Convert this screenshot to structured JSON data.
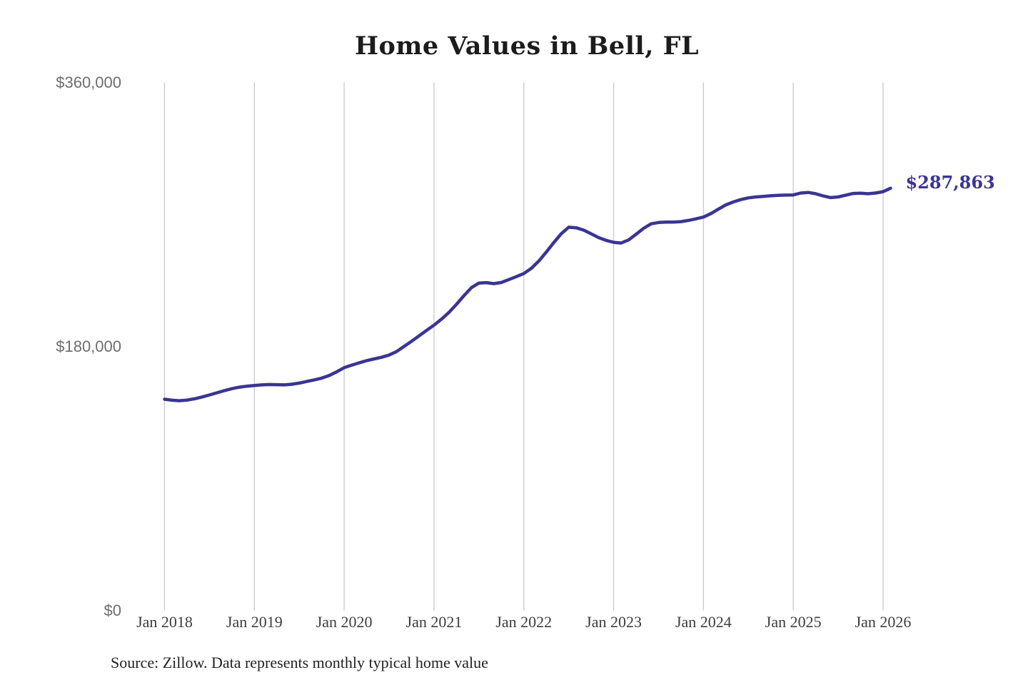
{
  "title": "Home Values in Bell, FL",
  "annotation": {
    "label": "$287,863"
  },
  "source": "Source: Zillow. Data represents monthly typical home value",
  "colors": {
    "line": "#3a3593",
    "annotation": "#3a3593",
    "grid": "#cccccc",
    "title": "#1c1c1c",
    "y_tick": "#6e6e6e",
    "x_tick": "#3d3d3d",
    "source": "#222222",
    "background": "#ffffff"
  },
  "chart_data": {
    "type": "line",
    "title": "Home Values in Bell, FL",
    "xlabel": "",
    "ylabel": "",
    "ylim": [
      0,
      360000
    ],
    "grid": "vertical-only",
    "legend": "none",
    "y_ticks": [
      {
        "label": "$0",
        "value": 0
      },
      {
        "label": "$180,000",
        "value": 180000
      },
      {
        "label": "$360,000",
        "value": 360000
      }
    ],
    "x_ticks": [
      {
        "label": "Jan 2018",
        "month_index": 0
      },
      {
        "label": "Jan 2019",
        "month_index": 12
      },
      {
        "label": "Jan 2020",
        "month_index": 24
      },
      {
        "label": "Jan 2021",
        "month_index": 36
      },
      {
        "label": "Jan 2022",
        "month_index": 48
      },
      {
        "label": "Jan 2023",
        "month_index": 60
      },
      {
        "label": "Jan 2024",
        "month_index": 72
      },
      {
        "label": "Jan 2025",
        "month_index": 84
      },
      {
        "label": "Jan 2026",
        "month_index": 96
      }
    ],
    "series": [
      {
        "name": "Monthly typical home value",
        "start_month": "2018-01",
        "end_month": "2026-02",
        "values": [
          144000,
          143300,
          143000,
          143400,
          144300,
          145500,
          146900,
          148400,
          149900,
          151200,
          152200,
          152900,
          153400,
          153800,
          154000,
          153900,
          153800,
          154200,
          155000,
          156100,
          157200,
          158400,
          160200,
          162700,
          165500,
          167200,
          168800,
          170300,
          171500,
          172600,
          174100,
          176500,
          180000,
          183500,
          187200,
          190900,
          194500,
          198600,
          203200,
          208700,
          214600,
          220100,
          223200,
          223500,
          222800,
          223600,
          225600,
          227600,
          229700,
          233200,
          238200,
          244300,
          250800,
          256800,
          261300,
          260900,
          259300,
          256800,
          254200,
          252300,
          251000,
          250500,
          252600,
          256500,
          260500,
          263600,
          264500,
          264800,
          264800,
          265100,
          265900,
          267000,
          268200,
          270600,
          273600,
          276500,
          278500,
          280100,
          281300,
          281900,
          282300,
          282700,
          283000,
          283200,
          283300,
          284600,
          285000,
          284100,
          282600,
          281500,
          281900,
          283100,
          284300,
          284500,
          284100,
          284600,
          285500,
          287863
        ]
      }
    ],
    "end_label": "$287,863",
    "end_value": 287863
  }
}
